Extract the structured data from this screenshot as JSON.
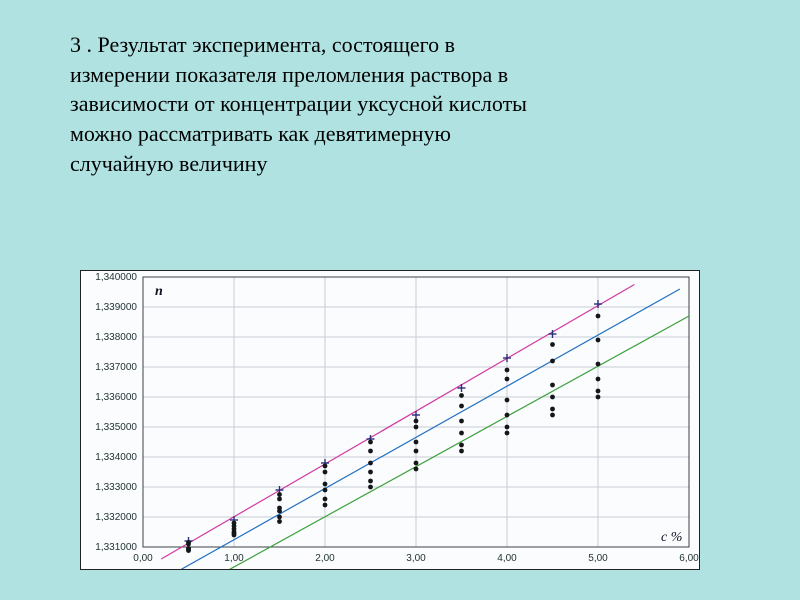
{
  "title": {
    "number": "3 .",
    "text_lines": [
      "Результат эксперимента, состоящего в",
      "измерении  показателя преломления раствора в",
      "зависимости от концентрации уксусной кислоты",
      "можно рассматривать как девятимерную",
      "случайную величину"
    ],
    "fontsize": 22
  },
  "chart": {
    "type": "scatter",
    "background_color": "#fbfcfe",
    "border_color": "#222222",
    "grid_color": "#c7cdd4",
    "axis_color": "#3b3f45",
    "axis_label_n": "n",
    "axis_label_c": "c %",
    "xlim": [
      0.0,
      6.0
    ],
    "ylim": [
      1.331,
      1.34
    ],
    "xtick_step": 1.0,
    "ytick_step": 0.001,
    "xtick_labels": [
      "0,00",
      "1,00",
      "2,00",
      "3,00",
      "4,00",
      "5,00",
      "6,00"
    ],
    "ytick_labels": [
      "1,331000",
      "1,332000",
      "1,333000",
      "1,334000",
      "1,335000",
      "1,336000",
      "1,337000",
      "1,338000",
      "1,339000",
      "1,340000"
    ],
    "tick_fontsize": 10,
    "x_values": [
      0.5,
      1.0,
      1.5,
      2.0,
      2.5,
      3.0,
      3.5,
      4.0,
      4.5,
      5.0
    ],
    "series": [
      {
        "y": [
          1.3312,
          1.3319,
          1.3329,
          1.3338,
          1.3346,
          1.3354,
          1.3363,
          1.3373,
          1.3381,
          1.3391
        ],
        "marker": "cross",
        "color": "#2a2f7a",
        "size": 4
      },
      {
        "y": [
          1.33115,
          1.3318,
          1.33275,
          1.3337,
          1.3345,
          1.3352,
          1.33605,
          1.3369,
          1.33775,
          1.3387
        ],
        "marker": "dot",
        "color": "#14161a",
        "size": 2.4
      },
      {
        "y": [
          1.3311,
          1.3317,
          1.3326,
          1.3335,
          1.3342,
          1.335,
          1.3357,
          1.3366,
          1.3372,
          1.3379
        ],
        "marker": "dot",
        "color": "#14161a",
        "size": 2.4
      },
      {
        "y": [
          1.33095,
          1.3316,
          1.3323,
          1.3331,
          1.3338,
          1.3345,
          1.3352,
          1.3359,
          1.3364,
          1.3371
        ],
        "marker": "dot",
        "color": "#14161a",
        "size": 2.4
      },
      {
        "y": [
          1.3309,
          1.3315,
          1.3322,
          1.3329,
          1.3335,
          1.3342,
          1.3348,
          1.3354,
          1.336,
          1.3366
        ],
        "marker": "dot",
        "color": "#14161a",
        "size": 2.4
      },
      {
        "y": [
          1.33088,
          1.33145,
          1.332,
          1.3326,
          1.3332,
          1.3338,
          1.3344,
          1.335,
          1.3356,
          1.3362
        ],
        "marker": "dot",
        "color": "#14161a",
        "size": 2.4
      },
      {
        "y": [
          1.33095,
          1.3314,
          1.33185,
          1.3324,
          1.333,
          1.3336,
          1.3342,
          1.3348,
          1.3354,
          1.336
        ],
        "marker": "dot",
        "color": "#14161a",
        "size": 2.4
      }
    ],
    "trend_lines": [
      {
        "x1": 0.2,
        "y1": 1.3306,
        "x2": 5.4,
        "y2": 1.33975,
        "color": "#d138a0",
        "width": 1.2
      },
      {
        "x1": 0.3,
        "y1": 1.33005,
        "x2": 5.9,
        "y2": 1.3396,
        "color": "#2070c0",
        "width": 1.2
      },
      {
        "x1": 0.8,
        "y1": 1.33,
        "x2": 6.0,
        "y2": 1.3387,
        "color": "#3aa03a",
        "width": 1.2
      }
    ]
  }
}
